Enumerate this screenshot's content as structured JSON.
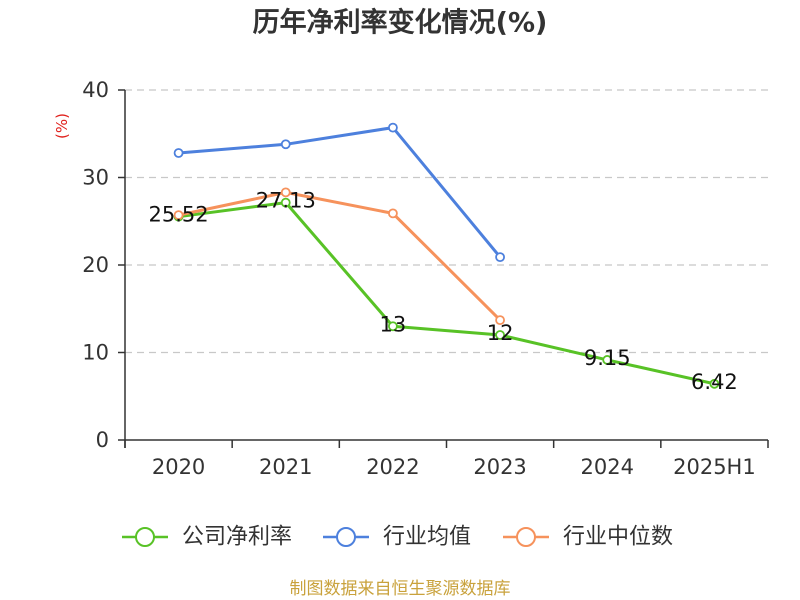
{
  "chart_data": {
    "type": "line",
    "title": "历年净利率变化情况(%)",
    "xlabel": "",
    "ylabel": "(%)",
    "categories": [
      "2020",
      "2021",
      "2022",
      "2023",
      "2024",
      "2025H1"
    ],
    "ylim": [
      0,
      40
    ],
    "yticks": [
      0,
      10,
      20,
      30,
      40
    ],
    "grid": true,
    "legend_position": "bottom",
    "series": [
      {
        "name": "公司净利率",
        "color": "#58c226",
        "data_labels": true,
        "values": [
          25.52,
          27.13,
          13,
          12,
          9.15,
          6.42
        ]
      },
      {
        "name": "行业均值",
        "color": "#4d80dd",
        "data_labels": false,
        "values": [
          32.8,
          33.8,
          35.7,
          20.9,
          null,
          null
        ]
      },
      {
        "name": "行业中位数",
        "color": "#f6925c",
        "data_labels": false,
        "values": [
          25.7,
          28.3,
          25.9,
          13.7,
          null,
          null
        ]
      }
    ]
  },
  "source_note": "制图数据来自恒生聚源数据库",
  "colors": {
    "title": "#333333",
    "ylabel": "#e0201c",
    "source_note": "#c9a23c",
    "axis": "#333333",
    "grid": "#c8c8c8"
  }
}
